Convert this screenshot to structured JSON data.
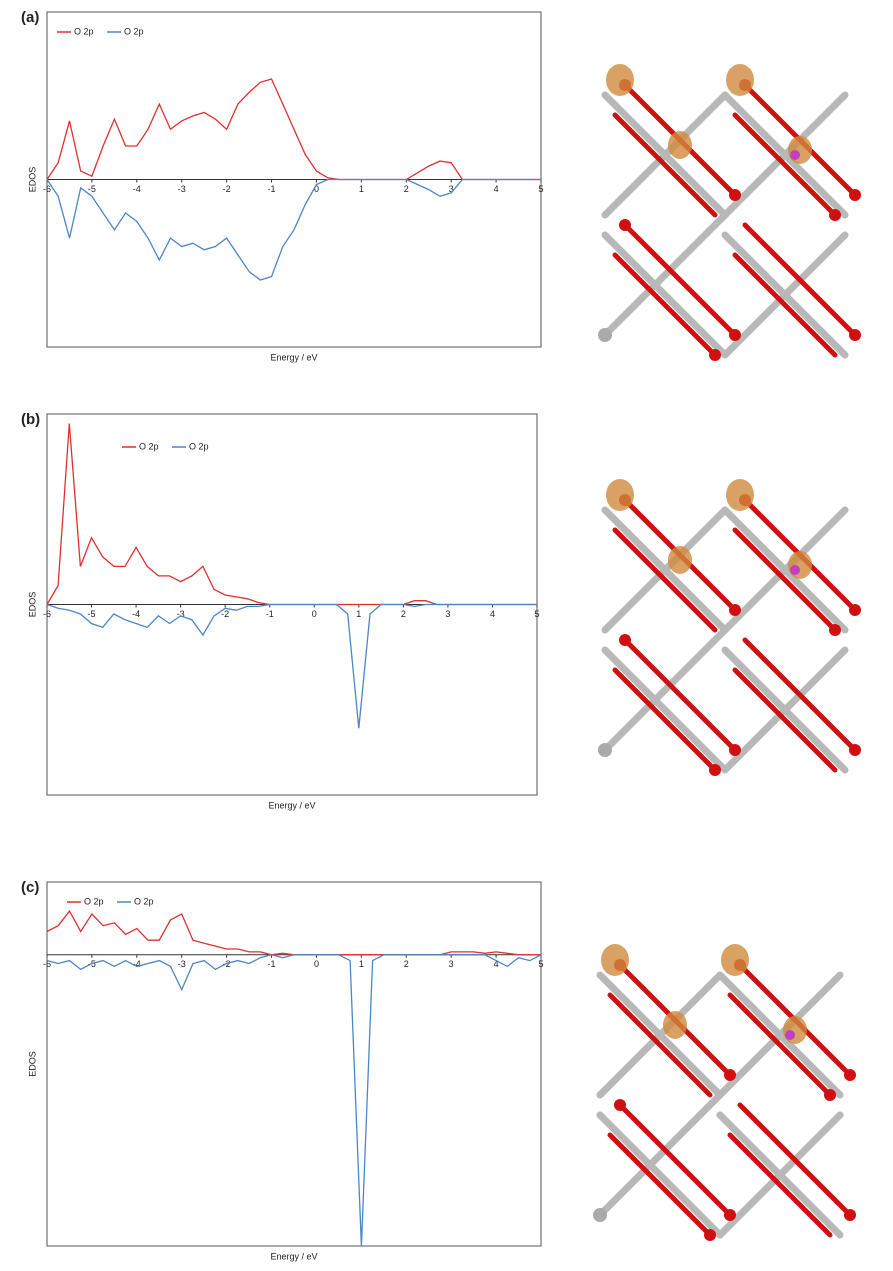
{
  "chart_data": [
    {
      "type": "line",
      "panel_label": "(a)",
      "xlabel": "Energy / eV",
      "ylabel": "EDOS",
      "legend": "upper left",
      "xlim": [
        -6,
        5
      ],
      "ylim": [
        -1,
        1
      ],
      "xticks": [
        -6,
        -5,
        -4,
        -3,
        -2,
        -1,
        0,
        1,
        2,
        3,
        4,
        5
      ],
      "x": [
        -6,
        -5.75,
        -5.5,
        -5.25,
        -5,
        -4.75,
        -4.5,
        -4.25,
        -4,
        -3.75,
        -3.5,
        -3.25,
        -3,
        -2.75,
        -2.5,
        -2.25,
        -2,
        -1.75,
        -1.5,
        -1.25,
        -1,
        -0.75,
        -0.5,
        -0.25,
        0,
        0.25,
        0.5,
        0.75,
        1,
        1.25,
        1.5,
        1.75,
        2,
        2.25,
        2.5,
        2.75,
        3,
        3.25,
        3.5,
        3.75,
        4,
        4.25,
        4.5,
        4.75,
        5
      ],
      "series": [
        {
          "name": "O 2p",
          "color": "#e03030",
          "values": [
            0,
            0.1,
            0.35,
            0.05,
            0.02,
            0.2,
            0.36,
            0.2,
            0.2,
            0.3,
            0.45,
            0.3,
            0.35,
            0.38,
            0.4,
            0.36,
            0.3,
            0.45,
            0.52,
            0.58,
            0.6,
            0.45,
            0.3,
            0.15,
            0.05,
            0.01,
            0,
            0,
            0,
            0,
            0,
            0,
            0,
            0.04,
            0.08,
            0.11,
            0.1,
            0,
            0,
            0,
            0,
            0,
            0,
            0,
            0
          ]
        },
        {
          "name": "O 2p",
          "color": "#4a86c8",
          "values": [
            0,
            -0.1,
            -0.35,
            -0.05,
            -0.1,
            -0.2,
            -0.3,
            -0.2,
            -0.25,
            -0.35,
            -0.48,
            -0.35,
            -0.4,
            -0.38,
            -0.42,
            -0.4,
            -0.35,
            -0.45,
            -0.55,
            -0.6,
            -0.58,
            -0.4,
            -0.3,
            -0.15,
            -0.03,
            0,
            0,
            0,
            0,
            0,
            0,
            0,
            0,
            -0.03,
            -0.06,
            -0.1,
            -0.08,
            0,
            0,
            0,
            0,
            0,
            0,
            0,
            0
          ]
        }
      ]
    },
    {
      "type": "line",
      "panel_label": "(b)",
      "xlabel": "Energy / eV",
      "ylabel": "EDOS",
      "legend": "upper left",
      "xlim": [
        -6,
        5
      ],
      "ylim": [
        -1,
        1
      ],
      "xticks": [
        -6,
        -5,
        -4,
        -3,
        -2,
        -1,
        0,
        1,
        2,
        3,
        4,
        5
      ],
      "x": [
        -6,
        -5.75,
        -5.5,
        -5.25,
        -5,
        -4.75,
        -4.5,
        -4.25,
        -4,
        -3.75,
        -3.5,
        -3.25,
        -3,
        -2.75,
        -2.5,
        -2.25,
        -2,
        -1.75,
        -1.5,
        -1.25,
        -1,
        -0.75,
        -0.5,
        -0.25,
        0,
        0.25,
        0.5,
        0.75,
        1,
        1.25,
        1.5,
        1.75,
        2,
        2.25,
        2.5,
        2.75,
        3,
        3.25,
        3.5,
        3.75,
        4,
        4.25,
        4.5,
        4.75,
        5
      ],
      "series": [
        {
          "name": "O 2p",
          "color": "#e03030",
          "values": [
            0,
            0.1,
            0.95,
            0.2,
            0.35,
            0.25,
            0.2,
            0.2,
            0.3,
            0.2,
            0.15,
            0.15,
            0.12,
            0.15,
            0.2,
            0.08,
            0.05,
            0.04,
            0.03,
            0.01,
            0,
            0,
            0,
            0,
            0,
            0,
            0,
            0,
            0,
            0,
            0,
            0,
            0,
            0.02,
            0.02,
            0,
            0,
            0,
            0,
            0,
            0,
            0,
            0,
            0,
            0
          ]
        },
        {
          "name": "O 2p",
          "color": "#4a86c8",
          "values": [
            0,
            -0.02,
            -0.03,
            -0.05,
            -0.1,
            -0.12,
            -0.05,
            -0.08,
            -0.1,
            -0.12,
            -0.06,
            -0.1,
            -0.06,
            -0.08,
            -0.16,
            -0.06,
            -0.02,
            -0.03,
            -0.01,
            -0.01,
            0,
            0,
            0,
            0,
            0,
            0,
            0,
            -0.05,
            -0.65,
            -0.05,
            0,
            0,
            0,
            -0.01,
            0,
            0,
            0,
            0,
            0,
            0,
            0,
            0,
            0,
            0,
            0
          ]
        }
      ]
    },
    {
      "type": "line",
      "panel_label": "(c)",
      "xlabel": "Energy / eV",
      "ylabel": "EDOS",
      "legend": "upper left",
      "xlim": [
        -6,
        5
      ],
      "ylim": [
        -1,
        0.25
      ],
      "xticks": [
        -6,
        -5,
        -4,
        -3,
        -2,
        -1,
        0,
        1,
        2,
        3,
        4,
        5
      ],
      "x": [
        -6,
        -5.75,
        -5.5,
        -5.25,
        -5,
        -4.75,
        -4.5,
        -4.25,
        -4,
        -3.75,
        -3.5,
        -3.25,
        -3,
        -2.75,
        -2.5,
        -2.25,
        -2,
        -1.75,
        -1.5,
        -1.25,
        -1,
        -0.75,
        -0.5,
        -0.25,
        0,
        0.25,
        0.5,
        0.75,
        1,
        1.25,
        1.5,
        1.75,
        2,
        2.25,
        2.5,
        2.75,
        3,
        3.25,
        3.5,
        3.75,
        4,
        4.25,
        4.5,
        4.75,
        5
      ],
      "series": [
        {
          "name": "O 2p",
          "color": "#e03030",
          "values": [
            0.08,
            0.1,
            0.15,
            0.08,
            0.14,
            0.1,
            0.11,
            0.07,
            0.09,
            0.05,
            0.05,
            0.12,
            0.14,
            0.05,
            0.04,
            0.03,
            0.02,
            0.02,
            0.01,
            0.01,
            0,
            0.005,
            0,
            0,
            0,
            0,
            0,
            0,
            0,
            0,
            0,
            0,
            0,
            0,
            0,
            0,
            0.01,
            0.01,
            0.01,
            0.005,
            0.01,
            0.005,
            0,
            0,
            0
          ]
        },
        {
          "name": "O 2p",
          "color": "#4a86c8",
          "values": [
            -0.02,
            -0.03,
            -0.02,
            -0.05,
            -0.03,
            -0.02,
            -0.04,
            -0.02,
            -0.04,
            -0.03,
            -0.02,
            -0.04,
            -0.12,
            -0.03,
            -0.02,
            -0.05,
            -0.03,
            -0.02,
            -0.03,
            -0.01,
            0,
            -0.01,
            0,
            0,
            0,
            0,
            0,
            -0.02,
            -1,
            -0.02,
            0,
            0,
            0,
            0,
            0,
            0,
            0,
            0,
            0,
            0,
            -0.02,
            -0.04,
            -0.01,
            -0.02,
            0
          ]
        }
      ]
    }
  ]
}
